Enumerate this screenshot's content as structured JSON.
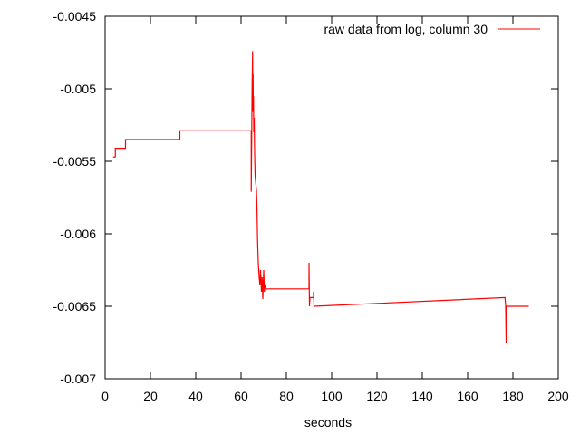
{
  "chart_data": {
    "type": "line",
    "title": "",
    "xlabel": "seconds",
    "ylabel": "",
    "xlim": [
      0,
      200
    ],
    "ylim": [
      -0.007,
      -0.0045
    ],
    "x_ticks": [
      0,
      20,
      40,
      60,
      80,
      100,
      120,
      140,
      160,
      180,
      200
    ],
    "y_ticks": [
      -0.007,
      -0.0065,
      -0.006,
      -0.0055,
      -0.005,
      -0.0045
    ],
    "x_tick_labels": [
      "0",
      "20",
      "40",
      "60",
      "80",
      "100",
      "120",
      "140",
      "160",
      "180",
      "200"
    ],
    "y_tick_labels": [
      "-0.007",
      "-0.0065",
      "-0.006",
      "-0.0055",
      "-0.005",
      "-0.0045"
    ],
    "grid": false,
    "legend_position": "top-right",
    "series": [
      {
        "name": "raw data from log, column 30",
        "color": "#ff0000",
        "x": [
          3.5,
          4.5,
          4.5,
          9,
          9,
          33,
          33,
          64.5,
          64.5,
          64.9,
          65.0,
          65.1,
          65.2,
          65.3,
          65.4,
          65.5,
          65.6,
          65.8,
          66.0,
          66.2,
          66.5,
          66.8,
          67.0,
          67.3,
          67.6,
          68.0,
          68.3,
          68.6,
          69.0,
          69.3,
          69.6,
          70.0,
          70.3,
          70.6,
          71.0,
          71.0,
          90.0,
          90.0,
          90.2,
          90.4,
          92.0,
          92.0,
          92.2,
          176.5,
          176.5,
          176.8,
          177.0,
          177.2,
          187
        ],
        "y": [
          -0.00547,
          -0.00547,
          -0.00541,
          -0.00541,
          -0.00535,
          -0.00535,
          -0.00529,
          -0.00529,
          -0.00571,
          -0.00495,
          -0.00487,
          -0.00474,
          -0.00516,
          -0.0049,
          -0.00515,
          -0.00505,
          -0.0053,
          -0.0052,
          -0.00545,
          -0.0056,
          -0.00565,
          -0.0057,
          -0.0058,
          -0.00605,
          -0.0062,
          -0.0063,
          -0.00635,
          -0.00625,
          -0.0064,
          -0.0063,
          -0.00645,
          -0.00625,
          -0.0064,
          -0.00635,
          -0.00638,
          -0.00638,
          -0.00638,
          -0.0062,
          -0.0065,
          -0.00644,
          -0.00644,
          -0.0064,
          -0.0065,
          -0.00644,
          -0.00644,
          -0.0065,
          -0.00675,
          -0.0065,
          -0.0065
        ]
      }
    ]
  }
}
